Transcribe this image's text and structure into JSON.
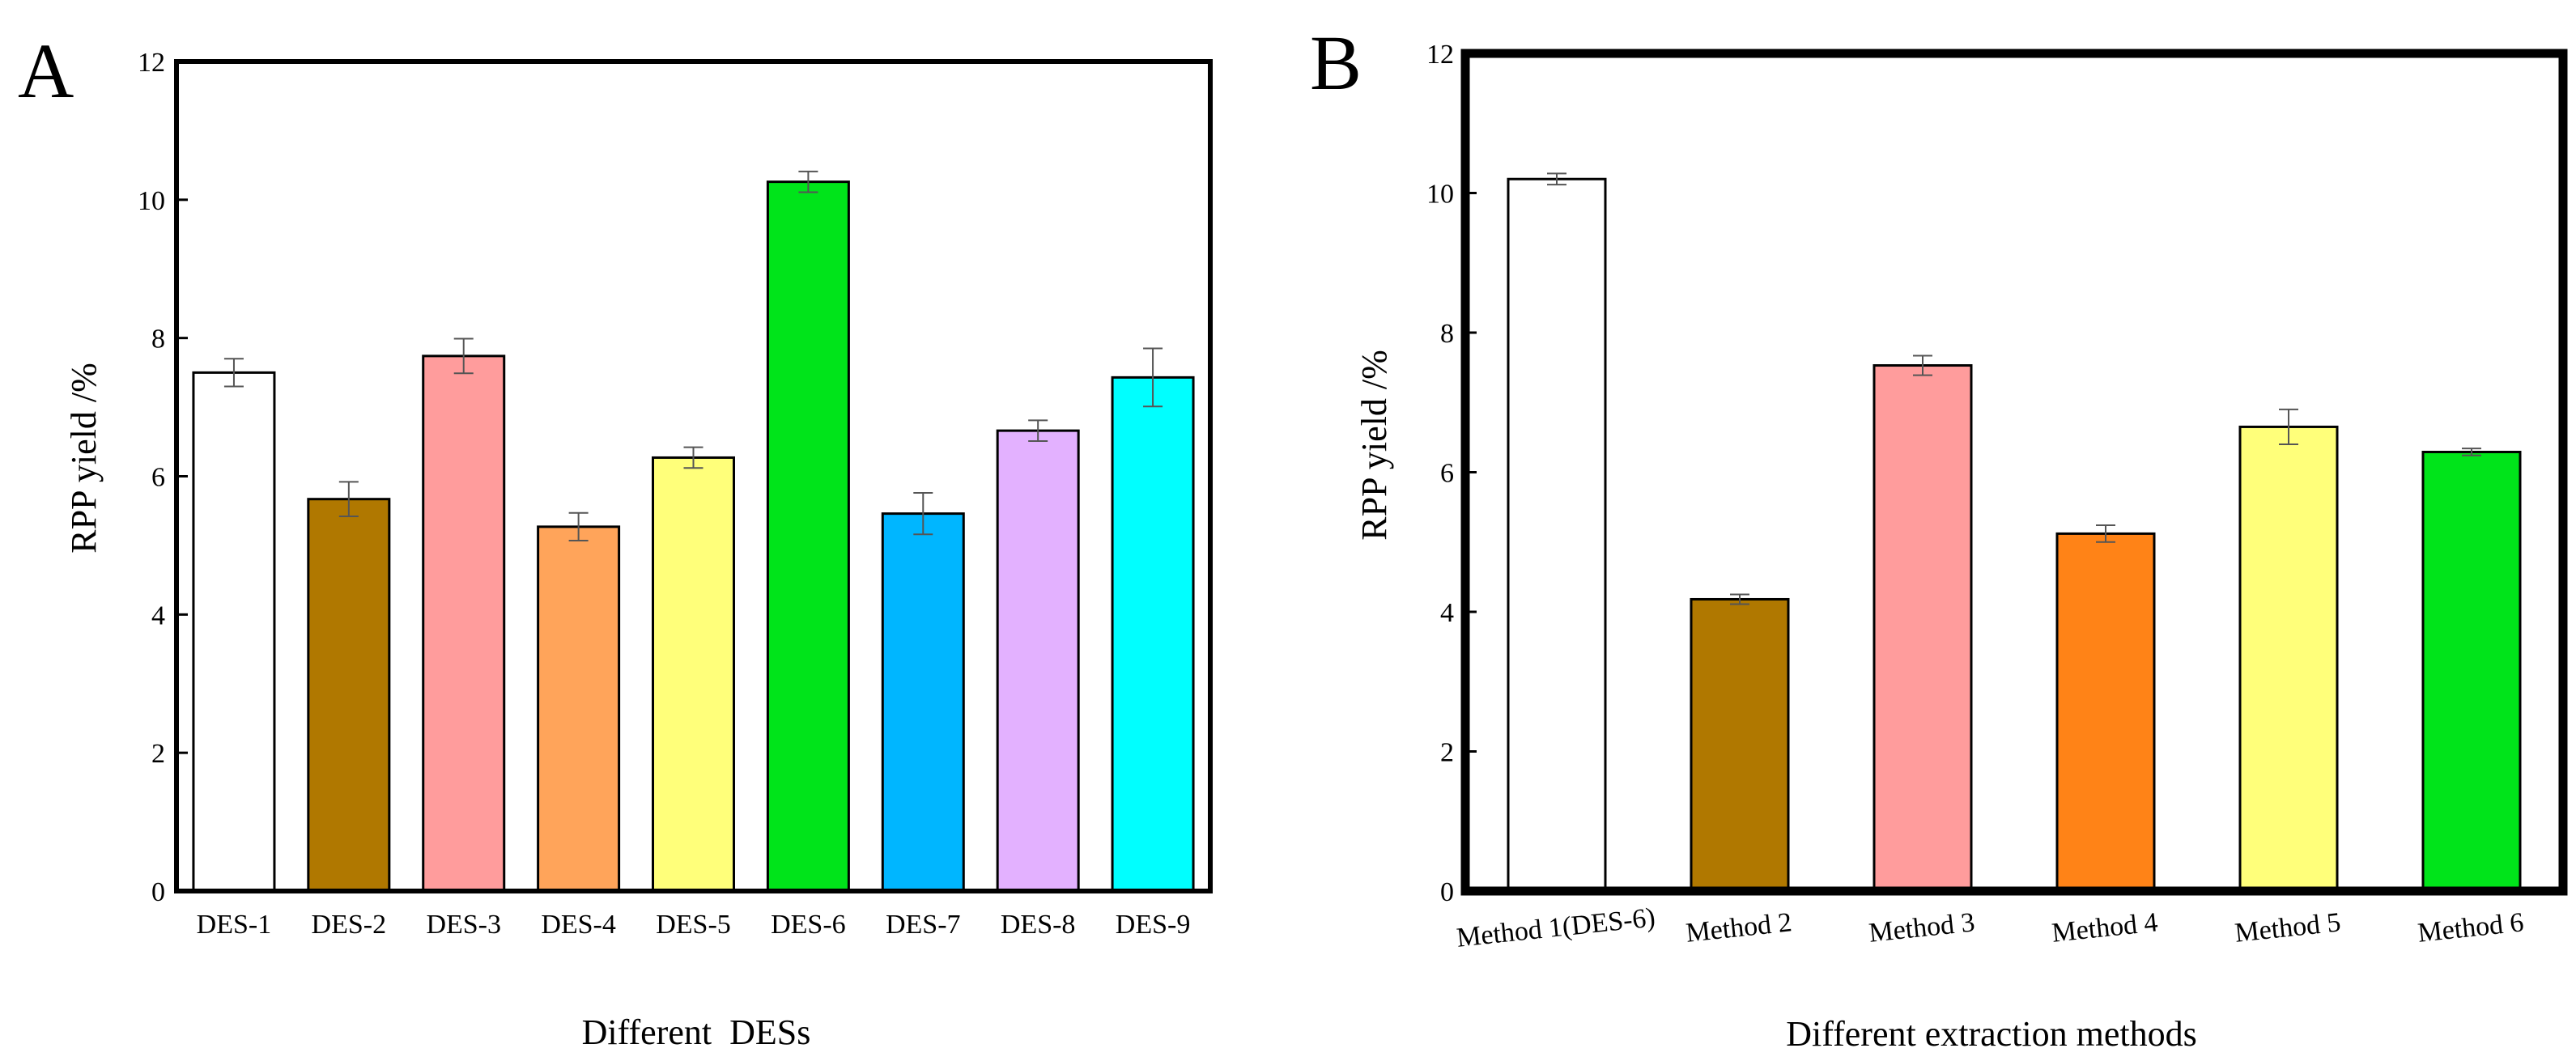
{
  "figure": {
    "panels": [
      "A",
      "B"
    ]
  },
  "chart_data": [
    {
      "type": "bar",
      "panel_label": "A",
      "title": "",
      "xlabel": "Different  DESs",
      "ylabel": "RPP yield /%",
      "ylim": [
        0,
        12
      ],
      "yticks": [
        0,
        2,
        4,
        6,
        8,
        10,
        12
      ],
      "grid": false,
      "legend": "none",
      "categories": [
        "DES-1",
        "DES-2",
        "DES-3",
        "DES-4",
        "DES-5",
        "DES-6",
        "DES-7",
        "DES-8",
        "DES-9"
      ],
      "values": [
        7.5,
        5.67,
        7.74,
        5.27,
        6.27,
        10.26,
        5.46,
        6.66,
        7.43
      ],
      "errors": [
        0.2,
        0.25,
        0.25,
        0.2,
        0.15,
        0.15,
        0.3,
        0.15,
        0.42
      ],
      "colors": [
        "#ffffff",
        "#b07800",
        "#ff9c9c",
        "#ffa45a",
        "#ffff7a",
        "#00e41a",
        "#00b6ff",
        "#e3b1ff",
        "#00ffff"
      ]
    },
    {
      "type": "bar",
      "panel_label": "B",
      "title": "",
      "xlabel": "Different extraction methods",
      "ylabel": "RPP yield /%",
      "ylim": [
        0,
        12
      ],
      "yticks": [
        0,
        2,
        4,
        6,
        8,
        10,
        12
      ],
      "grid": false,
      "legend": "none",
      "categories": [
        "Method 1(DES-6)",
        "Method 2",
        "Method 3",
        "Method 4",
        "Method 5",
        "Method 6"
      ],
      "values": [
        10.2,
        4.18,
        7.53,
        5.12,
        6.65,
        6.29
      ],
      "errors": [
        0.08,
        0.07,
        0.14,
        0.12,
        0.25,
        0.05
      ],
      "colors": [
        "#ffffff",
        "#b07800",
        "#ff9c9c",
        "#ff8317",
        "#ffff7a",
        "#00e41a"
      ]
    }
  ]
}
